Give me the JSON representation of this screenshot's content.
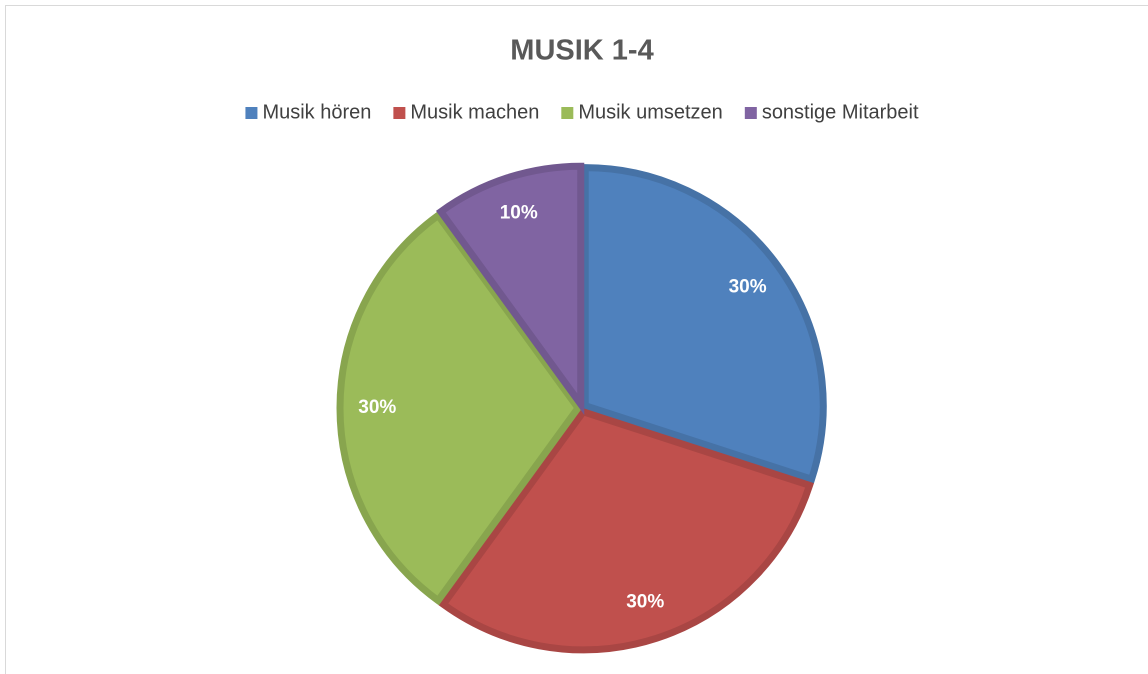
{
  "chart_data": {
    "type": "pie",
    "title": "MUSIK 1-4",
    "categories": [
      "Musik hören",
      "Musik machen",
      "Musik umsetzen",
      "sonstige Mitarbeit"
    ],
    "values": [
      30,
      30,
      30,
      10
    ],
    "value_labels": [
      "30%",
      "30%",
      "30%",
      "10%"
    ],
    "colors": [
      "#4f81bd",
      "#c0504d",
      "#9bbb59",
      "#8064a2"
    ],
    "legend": "top"
  }
}
